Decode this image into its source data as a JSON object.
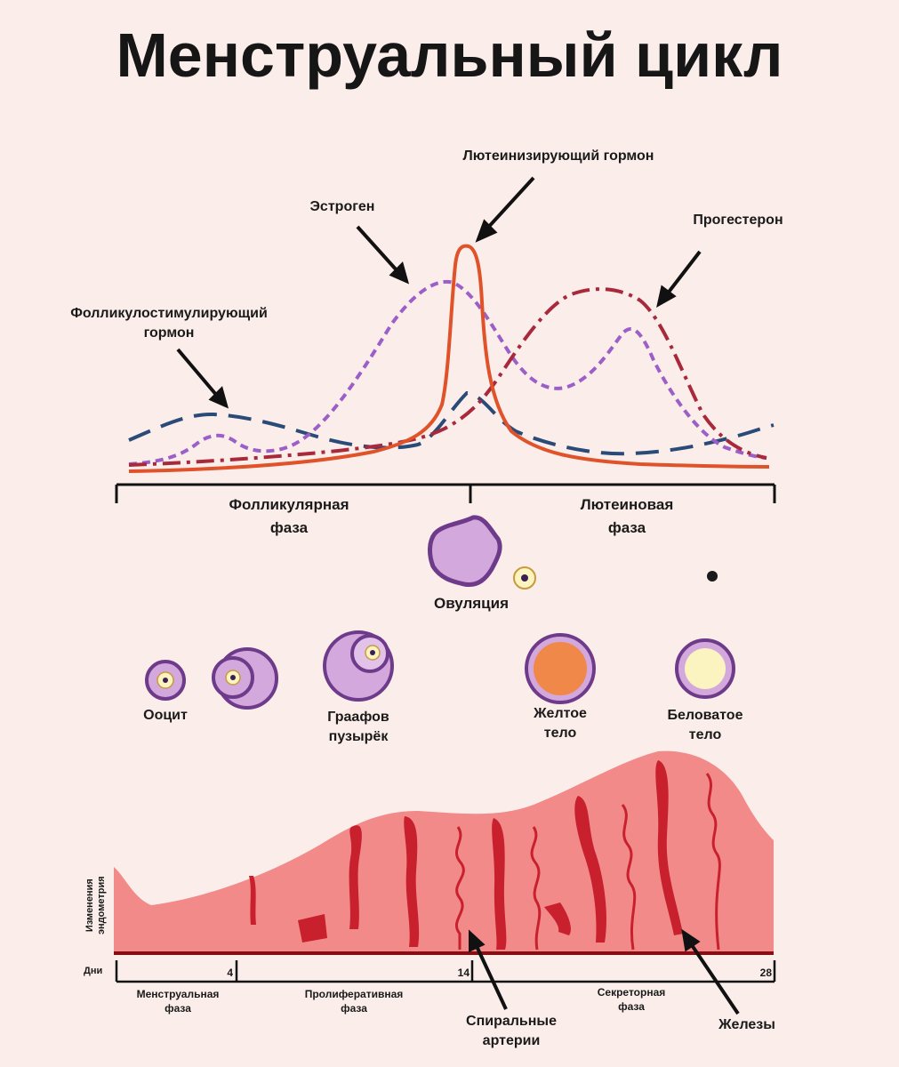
{
  "title": "Менструальный цикл",
  "hormones": {
    "lh": "Лютеинизирующий гормон",
    "estrogen": "Эстроген",
    "progesterone": "Прогестерон",
    "fsh_line1": "Фолликулостимулирующий",
    "fsh_line2": "гормон"
  },
  "ovarian_phases": {
    "follicular_line1": "Фолликулярная",
    "follicular_line2": "фаза",
    "luteal_line1": "Лютеиновая",
    "luteal_line2": "фаза"
  },
  "ovulation": "Овуляция",
  "structures": {
    "oocyte": "Ооцит",
    "graafian_line1": "Граафов",
    "graafian_line2": "пузырёк",
    "corpus_luteum_line1": "Желтое",
    "corpus_luteum_line2": "тело",
    "corpus_albicans_line1": "Беловатое",
    "corpus_albicans_line2": "тело"
  },
  "endometrium": {
    "axis_line1": "Изменения",
    "axis_line2": "эндометрия",
    "days_label": "Дни",
    "day_ticks": [
      "4",
      "14",
      "28"
    ],
    "phases": {
      "menstrual_line1": "Менструальная",
      "menstrual_line2": "фаза",
      "proliferative_line1": "Пролиферативная",
      "proliferative_line2": "фаза",
      "secretory_line1": "Секреторная",
      "secretory_line2": "фаза"
    },
    "spiral_line1": "Спиральные",
    "spiral_line2": "артерии",
    "glands": "Железы"
  },
  "colors": {
    "lh": "#e0522a",
    "estrogen": "#9b5fc7",
    "progesterone": "#a8283c",
    "fsh": "#2a4a78",
    "tissue": "#f28a8a",
    "tissue_dark": "#c8202c",
    "follicle_fill": "#d3a8dc",
    "follicle_stroke": "#6e3a8a",
    "corpus_luteum": "#f0884a",
    "corpus_albicans": "#fbf3c0"
  }
}
